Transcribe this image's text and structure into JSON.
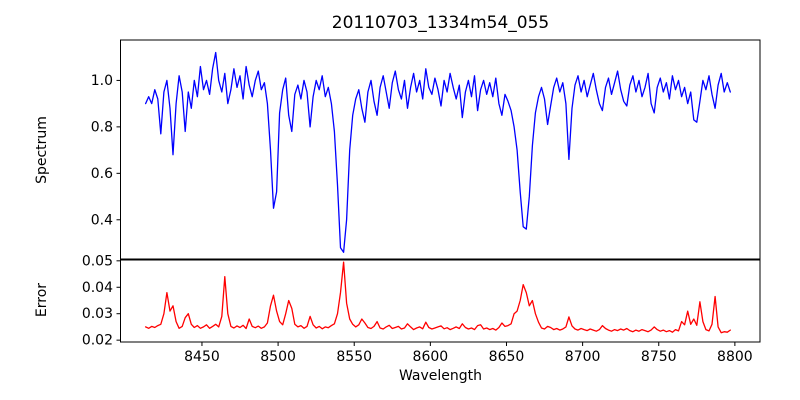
{
  "title": "20110703_1334m54_055",
  "colors": {
    "spectrum_line": "#0000ff",
    "error_line": "#ff0000",
    "axes": "#000000",
    "background": "#ffffff"
  },
  "chart_data": [
    {
      "type": "line",
      "name": "spectrum-panel",
      "title": "20110703_1334m54_055",
      "xlabel": "",
      "ylabel": "Spectrum",
      "xlim": [
        8396.5,
        8816.5
      ],
      "ylim": [
        0.229,
        1.174
      ],
      "yticks": [
        0.4,
        0.6,
        0.8,
        1.0
      ],
      "ytick_labels": [
        "0.4",
        "0.6",
        "0.8",
        "1.0"
      ],
      "grid": false,
      "legend_position": "none",
      "series": [
        {
          "name": "spectrum",
          "color": "#0000ff",
          "x": [
            8413,
            8415,
            8417,
            8419,
            8421,
            8423,
            8425,
            8427,
            8429,
            8431,
            8433,
            8435,
            8437,
            8439,
            8441,
            8443,
            8445,
            8447,
            8449,
            8451,
            8453,
            8455,
            8457,
            8459,
            8461,
            8463,
            8465,
            8467,
            8469,
            8471,
            8473,
            8475,
            8477,
            8479,
            8481,
            8483,
            8485,
            8487,
            8489,
            8491,
            8493,
            8495,
            8497,
            8499,
            8501,
            8503,
            8505,
            8507,
            8509,
            8511,
            8513,
            8515,
            8517,
            8519,
            8521,
            8523,
            8525,
            8527,
            8529,
            8531,
            8533,
            8535,
            8537,
            8539,
            8541,
            8543,
            8545,
            8547,
            8549,
            8551,
            8553,
            8555,
            8557,
            8559,
            8561,
            8563,
            8565,
            8567,
            8569,
            8571,
            8573,
            8575,
            8577,
            8579,
            8581,
            8583,
            8585,
            8587,
            8589,
            8591,
            8593,
            8595,
            8597,
            8599,
            8601,
            8603,
            8605,
            8607,
            8609,
            8611,
            8613,
            8615,
            8617,
            8619,
            8621,
            8623,
            8625,
            8627,
            8629,
            8631,
            8633,
            8635,
            8637,
            8639,
            8641,
            8643,
            8645,
            8647,
            8649,
            8651,
            8653,
            8655,
            8657,
            8659,
            8661,
            8663,
            8665,
            8667,
            8669,
            8671,
            8673,
            8675,
            8677,
            8679,
            8681,
            8683,
            8685,
            8687,
            8689,
            8691,
            8693,
            8695,
            8697,
            8699,
            8701,
            8703,
            8705,
            8707,
            8709,
            8711,
            8713,
            8715,
            8717,
            8719,
            8721,
            8723,
            8725,
            8727,
            8729,
            8731,
            8733,
            8735,
            8737,
            8739,
            8741,
            8743,
            8745,
            8747,
            8749,
            8751,
            8753,
            8755,
            8757,
            8759,
            8761,
            8763,
            8765,
            8767,
            8769,
            8771,
            8773,
            8775,
            8777,
            8779,
            8781,
            8783,
            8785,
            8787,
            8789,
            8791,
            8793,
            8795,
            8797
          ],
          "y": [
            0.9,
            0.93,
            0.9,
            0.96,
            0.92,
            0.77,
            0.95,
            1.0,
            0.88,
            0.68,
            0.9,
            1.02,
            0.95,
            0.78,
            0.95,
            0.88,
            1.0,
            0.93,
            1.06,
            0.96,
            1.0,
            0.94,
            1.05,
            1.12,
            1.0,
            0.95,
            1.03,
            0.9,
            0.96,
            1.05,
            0.97,
            1.02,
            0.92,
            1.06,
            0.98,
            0.93,
            1.0,
            1.04,
            0.96,
            0.99,
            0.9,
            0.7,
            0.45,
            0.52,
            0.86,
            0.96,
            1.01,
            0.85,
            0.78,
            0.94,
            0.98,
            0.92,
            1.0,
            0.95,
            0.8,
            0.93,
            1.0,
            0.96,
            1.02,
            0.93,
            0.97,
            0.9,
            0.78,
            0.55,
            0.28,
            0.26,
            0.4,
            0.7,
            0.85,
            0.92,
            0.96,
            0.88,
            0.82,
            0.95,
            1.0,
            0.91,
            0.85,
            0.97,
            1.02,
            0.95,
            0.88,
            0.99,
            1.04,
            0.96,
            0.92,
            1.0,
            0.88,
            0.97,
            1.03,
            0.95,
            1.0,
            0.92,
            1.05,
            0.97,
            0.94,
            1.01,
            0.96,
            0.89,
            1.0,
            0.95,
            1.03,
            0.97,
            0.92,
            0.98,
            0.84,
            0.95,
            1.0,
            0.93,
            1.02,
            0.87,
            0.96,
            1.0,
            0.94,
            0.99,
            0.93,
            1.01,
            0.9,
            0.85,
            0.94,
            0.91,
            0.87,
            0.8,
            0.7,
            0.52,
            0.37,
            0.36,
            0.5,
            0.72,
            0.86,
            0.93,
            0.97,
            0.92,
            0.81,
            0.89,
            0.97,
            1.01,
            0.95,
            0.99,
            0.9,
            0.66,
            0.88,
            0.98,
            1.02,
            0.95,
            1.0,
            0.93,
            0.98,
            1.03,
            0.96,
            0.9,
            0.87,
            0.97,
            1.01,
            0.94,
            0.99,
            1.04,
            0.96,
            0.91,
            0.89,
            0.98,
            1.02,
            0.95,
            1.0,
            0.93,
            0.97,
            1.03,
            0.9,
            0.86,
            0.97,
            1.01,
            0.95,
            0.99,
            0.92,
            1.02,
            0.96,
            1.0,
            0.93,
            0.97,
            0.9,
            0.95,
            0.83,
            0.82,
            0.91,
            1.0,
            0.96,
            1.02,
            0.94,
            0.88,
            0.98,
            1.03,
            0.95,
            0.99,
            0.95
          ]
        }
      ]
    },
    {
      "type": "line",
      "name": "error-panel",
      "title": "",
      "xlabel": "Wavelength",
      "ylabel": "Error",
      "xlim": [
        8396.5,
        8816.5
      ],
      "ylim": [
        0.0193,
        0.0505
      ],
      "yticks": [
        0.02,
        0.03,
        0.04,
        0.05
      ],
      "ytick_labels": [
        "0.02",
        "0.03",
        "0.04",
        "0.05"
      ],
      "xticks": [
        8450,
        8500,
        8550,
        8600,
        8650,
        8700,
        8750,
        8800
      ],
      "xtick_labels": [
        "8450",
        "8500",
        "8550",
        "8600",
        "8650",
        "8700",
        "8750",
        "8800"
      ],
      "grid": false,
      "legend_position": "none",
      "series": [
        {
          "name": "error",
          "color": "#ff0000",
          "x": [
            8413,
            8415,
            8417,
            8419,
            8421,
            8423,
            8425,
            8427,
            8429,
            8431,
            8433,
            8435,
            8437,
            8439,
            8441,
            8443,
            8445,
            8447,
            8449,
            8451,
            8453,
            8455,
            8457,
            8459,
            8461,
            8463,
            8465,
            8467,
            8469,
            8471,
            8473,
            8475,
            8477,
            8479,
            8481,
            8483,
            8485,
            8487,
            8489,
            8491,
            8493,
            8495,
            8497,
            8499,
            8501,
            8503,
            8505,
            8507,
            8509,
            8511,
            8513,
            8515,
            8517,
            8519,
            8521,
            8523,
            8525,
            8527,
            8529,
            8531,
            8533,
            8535,
            8537,
            8539,
            8541,
            8543,
            8545,
            8547,
            8549,
            8551,
            8553,
            8555,
            8557,
            8559,
            8561,
            8563,
            8565,
            8567,
            8569,
            8571,
            8573,
            8575,
            8577,
            8579,
            8581,
            8583,
            8585,
            8587,
            8589,
            8591,
            8593,
            8595,
            8597,
            8599,
            8601,
            8603,
            8605,
            8607,
            8609,
            8611,
            8613,
            8615,
            8617,
            8619,
            8621,
            8623,
            8625,
            8627,
            8629,
            8631,
            8633,
            8635,
            8637,
            8639,
            8641,
            8643,
            8645,
            8647,
            8649,
            8651,
            8653,
            8655,
            8657,
            8659,
            8661,
            8663,
            8665,
            8667,
            8669,
            8671,
            8673,
            8675,
            8677,
            8679,
            8681,
            8683,
            8685,
            8687,
            8689,
            8691,
            8693,
            8695,
            8697,
            8699,
            8701,
            8703,
            8705,
            8707,
            8709,
            8711,
            8713,
            8715,
            8717,
            8719,
            8721,
            8723,
            8725,
            8727,
            8729,
            8731,
            8733,
            8735,
            8737,
            8739,
            8741,
            8743,
            8745,
            8747,
            8749,
            8751,
            8753,
            8755,
            8757,
            8759,
            8761,
            8763,
            8765,
            8767,
            8769,
            8771,
            8773,
            8775,
            8777,
            8779,
            8781,
            8783,
            8785,
            8787,
            8789,
            8791,
            8793,
            8795,
            8797
          ],
          "y": [
            0.025,
            0.0245,
            0.0252,
            0.0248,
            0.0255,
            0.026,
            0.03,
            0.038,
            0.031,
            0.033,
            0.027,
            0.0245,
            0.0252,
            0.0285,
            0.03,
            0.026,
            0.0248,
            0.0255,
            0.0245,
            0.025,
            0.0258,
            0.0245,
            0.0252,
            0.026,
            0.025,
            0.029,
            0.044,
            0.03,
            0.0252,
            0.0246,
            0.0254,
            0.0248,
            0.0256,
            0.0244,
            0.028,
            0.0252,
            0.0247,
            0.0253,
            0.0245,
            0.025,
            0.0265,
            0.033,
            0.037,
            0.031,
            0.027,
            0.0258,
            0.03,
            0.035,
            0.032,
            0.026,
            0.025,
            0.0255,
            0.0245,
            0.0252,
            0.029,
            0.0258,
            0.0246,
            0.0252,
            0.0243,
            0.025,
            0.0247,
            0.0255,
            0.0262,
            0.03,
            0.038,
            0.0495,
            0.034,
            0.028,
            0.026,
            0.025,
            0.0258,
            0.028,
            0.0265,
            0.0248,
            0.0244,
            0.0252,
            0.027,
            0.0246,
            0.0242,
            0.025,
            0.0256,
            0.0244,
            0.0248,
            0.0252,
            0.0242,
            0.0246,
            0.0262,
            0.025,
            0.024,
            0.0246,
            0.025,
            0.0243,
            0.0268,
            0.0248,
            0.0242,
            0.0246,
            0.025,
            0.0254,
            0.0243,
            0.0247,
            0.024,
            0.0245,
            0.025,
            0.0244,
            0.0262,
            0.0248,
            0.0242,
            0.0246,
            0.024,
            0.0255,
            0.0258,
            0.0242,
            0.0246,
            0.024,
            0.0244,
            0.0238,
            0.0248,
            0.0265,
            0.0252,
            0.0255,
            0.0262,
            0.03,
            0.031,
            0.035,
            0.041,
            0.038,
            0.033,
            0.035,
            0.03,
            0.0268,
            0.0246,
            0.0242,
            0.0252,
            0.0248,
            0.024,
            0.0244,
            0.0238,
            0.0242,
            0.025,
            0.0288,
            0.0254,
            0.0242,
            0.0238,
            0.0244,
            0.024,
            0.0236,
            0.0242,
            0.0238,
            0.0234,
            0.024,
            0.0255,
            0.0244,
            0.0238,
            0.0234,
            0.024,
            0.0236,
            0.0242,
            0.0238,
            0.0244,
            0.0236,
            0.0232,
            0.0238,
            0.0234,
            0.024,
            0.0236,
            0.0232,
            0.0238,
            0.025,
            0.024,
            0.0234,
            0.0238,
            0.0232,
            0.0236,
            0.023,
            0.024,
            0.0235,
            0.027,
            0.0258,
            0.031,
            0.026,
            0.028,
            0.0256,
            0.0345,
            0.027,
            0.024,
            0.0235,
            0.026,
            0.0365,
            0.025,
            0.0228,
            0.0232,
            0.023,
            0.0238
          ]
        }
      ]
    }
  ]
}
